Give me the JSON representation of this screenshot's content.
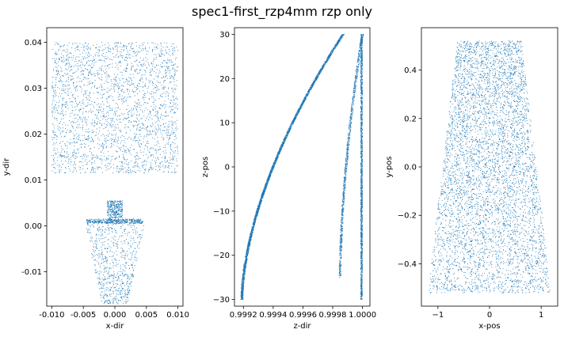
{
  "suptitle": "spec1-first_rzp4mm rzp only",
  "chart_data": [
    {
      "type": "scatter",
      "xlabel": "x-dir",
      "ylabel": "y-dir",
      "xlim": [
        -0.0108,
        0.0108
      ],
      "ylim": [
        -0.0175,
        0.0432
      ],
      "xticks": [
        -0.01,
        -0.005,
        0.0,
        0.005,
        0.01
      ],
      "xtick_labels": [
        "-0.010",
        "-0.005",
        "0.000",
        "0.005",
        "0.010"
      ],
      "yticks": [
        -0.01,
        0.0,
        0.01,
        0.02,
        0.03,
        0.04
      ],
      "ytick_labels": [
        "-0.01",
        "0.00",
        "0.01",
        "0.02",
        "0.03",
        "0.04"
      ],
      "marker_color": "#1f77b4",
      "grid": false,
      "point_groups": [
        {
          "shape": "rectangle",
          "x": [
            -0.01,
            0.01
          ],
          "y": [
            0.0115,
            0.04
          ],
          "points": 2600
        },
        {
          "shape": "trapezoid",
          "y": [
            -0.017,
            0.0005
          ],
          "x_at_y0": [
            -0.002,
            0.002
          ],
          "x_at_y1": [
            -0.0048,
            0.0048
          ],
          "points": 700
        },
        {
          "shape": "rectangle",
          "x": [
            -0.0045,
            0.0045
          ],
          "y": [
            0.0005,
            0.0015
          ],
          "points": 400
        },
        {
          "shape": "rectangle",
          "x": [
            -0.0012,
            0.0012
          ],
          "y": [
            0.001,
            0.0055
          ],
          "points": 350
        }
      ]
    },
    {
      "type": "scatter",
      "xlabel": "z-dir",
      "ylabel": "z-pos",
      "xlim": [
        0.99914,
        1.00005
      ],
      "ylim": [
        -31.5,
        31.5
      ],
      "xticks": [
        0.9992,
        0.9994,
        0.9996,
        0.9998,
        1.0
      ],
      "xtick_labels": [
        "0.9992",
        "0.9994",
        "0.9996",
        "0.9998",
        "1.0000"
      ],
      "yticks": [
        -30,
        -20,
        -10,
        0,
        10,
        20,
        30
      ],
      "ytick_labels": [
        "−30",
        "−20",
        "−10",
        "0",
        "10",
        "20",
        "30"
      ],
      "marker_color": "#1f77b4",
      "grid": false,
      "point_groups": [
        {
          "shape": "curve",
          "x_at_ymin": 0.99919,
          "x_at_ymax": 0.99987,
          "y": [
            -30,
            30
          ],
          "points": 3200
        },
        {
          "shape": "curve",
          "x_at_ymin": 0.99985,
          "x_at_ymax": 1.0,
          "y": [
            -25,
            30
          ],
          "points": 1000
        },
        {
          "shape": "vertical-band",
          "x": 1.0,
          "y": [
            -30,
            30
          ],
          "points": 1500
        }
      ]
    },
    {
      "type": "scatter",
      "xlabel": "x-pos",
      "ylabel": "y-pos",
      "xlim": [
        -1.32,
        1.32
      ],
      "ylim": [
        -0.575,
        0.575
      ],
      "xticks": [
        -1,
        0,
        1
      ],
      "xtick_labels": [
        "−1",
        "0",
        "1"
      ],
      "yticks": [
        -0.4,
        -0.2,
        0.0,
        0.2,
        0.4
      ],
      "ytick_labels": [
        "−0.4",
        "−0.2",
        "0.0",
        "0.2",
        "0.4"
      ],
      "marker_color": "#1f77b4",
      "grid": false,
      "point_groups": [
        {
          "shape": "trapezoid",
          "y": [
            -0.52,
            0.52
          ],
          "x_at_y0": [
            -1.2,
            1.2
          ],
          "x_at_y1": [
            -0.62,
            0.62
          ],
          "points": 6000
        }
      ]
    }
  ]
}
